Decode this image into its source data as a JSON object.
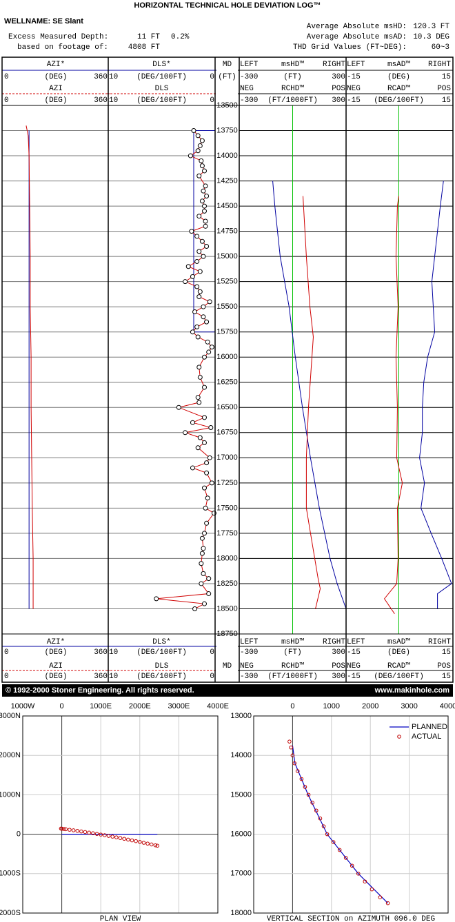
{
  "header": {
    "title": "HORIZONTAL TECHNICAL HOLE DEVIATION LOG™",
    "wellname": "WELLNAME: SE Slant",
    "left": [
      [
        "Excess Measured Depth:",
        "11 FT",
        "0.2%"
      ],
      [
        "based on footage of:",
        "4808 FT"
      ]
    ],
    "right": [
      [
        "Average Absolute msHD:",
        "120.3 FT"
      ],
      [
        "Average Absolute msAD:",
        "10.3 DEG"
      ],
      [
        "THD Grid Values (FT~DEG):",
        "60~3"
      ]
    ]
  },
  "footer": {
    "copyright": "© 1992-2000 Stoner Engineering. All rights reserved.",
    "url": "www.makinhole.com"
  },
  "chart_data": [
    {
      "type": "well-log",
      "ylabel": "MD",
      "yunit": "(FT)",
      "ylim": [
        18750,
        13500
      ],
      "yticks": [
        13500,
        13750,
        14000,
        14250,
        14500,
        14750,
        15000,
        15250,
        15500,
        15750,
        16000,
        16250,
        16500,
        16750,
        17000,
        17250,
        17500,
        17750,
        18000,
        18250,
        18500,
        18750
      ],
      "grid": true,
      "tracks": [
        {
          "series": [
            {
              "name": "AZI*",
              "unit": "(DEG)",
              "color": "#0000a0",
              "xlim": [
                0,
                360
              ],
              "md": [
                13750,
                18500
              ],
              "values": [
                88,
                88
              ]
            },
            {
              "name": "AZI",
              "unit": "(DEG)",
              "color": "#d00000",
              "xlim": [
                0,
                360
              ],
              "md": [
                13700,
                13800,
                14000,
                14500,
                15000,
                15500,
                16000,
                16500,
                17000,
                17500,
                18000,
                18500
              ],
              "values": [
                78,
                85,
                88,
                90,
                92,
                92,
                95,
                95,
                97,
                99,
                102,
                102
              ]
            }
          ]
        },
        {
          "series": [
            {
              "name": "DLS*",
              "unit": "(DEG/100FT)",
              "color": "#0000a0",
              "xlim": [
                10,
                0
              ],
              "md": [
                13750,
                13750,
                15750,
                15750,
                18500
              ],
              "values": [
                0,
                2,
                2,
                0,
                0
              ]
            },
            {
              "name": "DLS",
              "unit": "(DEG/100FT)",
              "color": "#d00000",
              "xlim": [
                10,
                0
              ],
              "marker": "circle",
              "md": [
                13750,
                13800,
                13850,
                13900,
                13950,
                14000,
                14050,
                14100,
                14150,
                14200,
                14300,
                14350,
                14400,
                14450,
                14500,
                14550,
                14600,
                14650,
                14700,
                14750,
                14800,
                14850,
                14900,
                14950,
                15000,
                15050,
                15100,
                15150,
                15200,
                15250,
                15300,
                15350,
                15400,
                15450,
                15500,
                15550,
                15600,
                15650,
                15700,
                15750,
                15800,
                15850,
                15900,
                15950,
                16000,
                16100,
                16200,
                16300,
                16400,
                16450,
                16500,
                16600,
                16650,
                16700,
                16750,
                16800,
                16850,
                16900,
                17000,
                17050,
                17100,
                17150,
                17250,
                17300,
                17400,
                17500,
                17550,
                17650,
                17750,
                17800,
                17900,
                17950,
                18050,
                18150,
                18200,
                18250,
                18350,
                18400,
                18450,
                18500
              ],
              "values": [
                2.0,
                1.6,
                1.2,
                1.4,
                1.6,
                2.3,
                1.3,
                1.2,
                1.0,
                1.5,
                0.9,
                1.1,
                0.8,
                1.2,
                1.0,
                1.0,
                1.5,
                0.9,
                0.9,
                2.2,
                1.7,
                1.2,
                0.8,
                1.5,
                1.1,
                1.7,
                2.5,
                1.4,
                2.1,
                2.8,
                1.7,
                1.4,
                1.5,
                0.5,
                1.1,
                1.9,
                1.1,
                0.8,
                1.7,
                2.1,
                1.6,
                0.7,
                0.3,
                0.6,
                1.0,
                1.5,
                1.4,
                1.0,
                1.6,
                1.5,
                3.4,
                1.0,
                2.1,
                0.4,
                2.8,
                1.4,
                1.0,
                1.6,
                0.5,
                0.8,
                2.1,
                0.8,
                0.3,
                1.0,
                0.7,
                0.9,
                0.1,
                0.8,
                1.0,
                1.2,
                1.1,
                1.2,
                1.3,
                1.1,
                0.6,
                1.3,
                0.6,
                5.5,
                1.0,
                1.9
              ]
            }
          ]
        },
        {
          "reference": 0,
          "reference_color": "#00c000",
          "series": [
            {
              "name": "msHD™",
              "unit": "(FT)",
              "side_labels": [
                "LEFT",
                "RIGHT"
              ],
              "color": "#0000a0",
              "xlim": [
                -300,
                300
              ],
              "md": [
                14250,
                14500,
                15000,
                15500,
                16000,
                16500,
                17000,
                17500,
                18000,
                18250,
                18500
              ],
              "values": [
                -112,
                -100,
                -70,
                -20,
                15,
                55,
                100,
                150,
                210,
                250,
                300
              ]
            },
            {
              "name": "RCHD™",
              "unit": "(FT/1000FT)",
              "side_labels": [
                "NEG",
                "POS"
              ],
              "color": "#d00000",
              "xlim": [
                -300,
                300
              ],
              "md": [
                14400,
                15000,
                15500,
                15800,
                16500,
                17000,
                17500,
                17800,
                18200,
                18300,
                18500
              ],
              "values": [
                58,
                77,
                97,
                116,
                89,
                77,
                77,
                105,
                143,
                155,
                128
              ]
            }
          ]
        },
        {
          "reference": 0,
          "reference_color": "#00c000",
          "series": [
            {
              "name": "msAD™",
              "unit": "(DEG)",
              "side_labels": [
                "LEFT",
                "RIGHT"
              ],
              "color": "#0000a0",
              "xlim": [
                -15,
                15
              ],
              "md": [
                14250,
                14500,
                15000,
                15250,
                15500,
                15750,
                16000,
                16250,
                16500,
                16750,
                17000,
                17250,
                17500,
                17750,
                18000,
                18250,
                18350,
                18500
              ],
              "values": [
                12.7,
                11.8,
                10.2,
                9.4,
                9.8,
                10.2,
                8.2,
                7.1,
                6.7,
                6.7,
                5.9,
                7.3,
                6.3,
                9.2,
                12.2,
                15.0,
                11.0,
                11.0
              ]
            },
            {
              "name": "RCAD™",
              "unit": "(DEG/100FT)",
              "side_labels": [
                "NEG",
                "POS"
              ],
              "color": "#d00000",
              "xlim": [
                -15,
                15
              ],
              "md": [
                14400,
                14500,
                15000,
                15500,
                16000,
                16500,
                17000,
                17250,
                17500,
                18000,
                18250,
                18400,
                18550
              ],
              "values": [
                0,
                -0.4,
                -0.8,
                -0.2,
                -0.8,
                -0.4,
                -0.6,
                1.0,
                -0.4,
                -0.2,
                -0.6,
                -4.1,
                -1.2
              ]
            }
          ]
        }
      ]
    },
    {
      "type": "scatter",
      "title": "PLAN VIEW",
      "xlim": [
        -1000,
        4000
      ],
      "xticks": [
        {
          "value": -1000,
          "label": "1000W"
        },
        0,
        {
          "value": 1000,
          "label": "1000E"
        },
        {
          "value": 2000,
          "label": "2000E"
        },
        {
          "value": 3000,
          "label": "3000E"
        },
        {
          "value": 4000,
          "label": "4000E"
        }
      ],
      "ylim": [
        -2000,
        3000
      ],
      "yticks": [
        {
          "value": 3000,
          "label": "3000N"
        },
        {
          "value": 2000,
          "label": "2000N"
        },
        {
          "value": 1000,
          "label": "1000N"
        },
        0,
        {
          "value": -1000,
          "label": "1000S"
        },
        {
          "value": -2000,
          "label": "2000S"
        }
      ],
      "grid": true,
      "series": [
        {
          "color": "#0000c0",
          "style": "line",
          "x": [
            0,
            2450
          ],
          "values": [
            0,
            0
          ]
        },
        {
          "color": "#c00000",
          "style": "circle",
          "x": [
            -20,
            0,
            50,
            100,
            200,
            300,
            400,
            500,
            600,
            700,
            800,
            900,
            1000,
            1100,
            1200,
            1300,
            1400,
            1500,
            1600,
            1700,
            1800,
            1900,
            2000,
            2100,
            2200,
            2300,
            2400,
            2450
          ],
          "values": [
            143,
            140,
            133,
            127,
            113,
            99,
            85,
            70,
            55,
            40,
            24,
            8,
            -9,
            -26,
            -43,
            -61,
            -79,
            -98,
            -117,
            -136,
            -156,
            -176,
            -196,
            -217,
            -238,
            -260,
            -281,
            -292
          ]
        }
      ]
    },
    {
      "type": "scatter",
      "title": "VERTICAL SECTION on AZIMUTH 096.0 DEG",
      "xlim": [
        -1000,
        4000
      ],
      "xticks": [
        0,
        1000,
        2000,
        3000,
        4000
      ],
      "ylim": [
        18000,
        13000
      ],
      "yticks": [
        13000,
        14000,
        15000,
        16000,
        17000,
        18000
      ],
      "grid": true,
      "legend": "upper right",
      "series": [
        {
          "name": "PLANNED",
          "color": "#0000c0",
          "style": "line",
          "x": [
            0,
            60,
            400,
            890,
            1690,
            2450
          ],
          "values": [
            13750,
            14200,
            15000,
            16000,
            17000,
            17750
          ]
        },
        {
          "name": "ACTUAL",
          "color": "#c00000",
          "style": "circle",
          "x": [
            -80,
            -40,
            0,
            50,
            130,
            230,
            320,
            410,
            510,
            610,
            710,
            800,
            890,
            1050,
            1210,
            1370,
            1530,
            1690,
            1860,
            2040,
            2250,
            2450
          ],
          "values": [
            13650,
            13800,
            14000,
            14200,
            14400,
            14600,
            14800,
            15000,
            15200,
            15400,
            15600,
            15800,
            16000,
            16200,
            16400,
            16600,
            16800,
            17000,
            17200,
            17400,
            17600,
            17750
          ]
        }
      ]
    }
  ]
}
